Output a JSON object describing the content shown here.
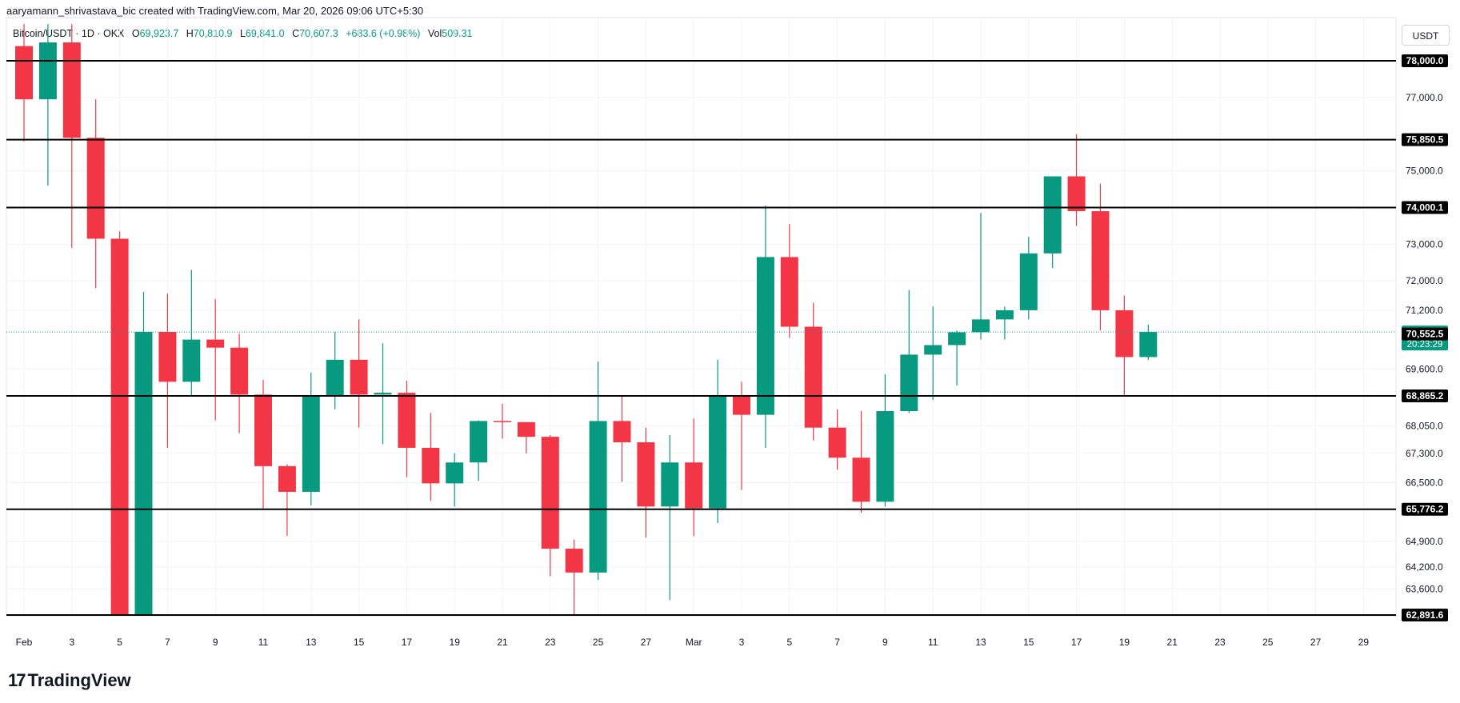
{
  "header": {
    "caption": "aaryamann_shrivastava_bic created with TradingView.com, Mar 20, 2026 09:06 UTC+5:30"
  },
  "symbol": {
    "name": "Bitcoin/USDT · 1D · OKX",
    "o_label": "O",
    "o": "69,923.7",
    "h_label": "H",
    "h": "70,810.9",
    "l_label": "L",
    "l": "69,841.0",
    "c_label": "C",
    "c": "70,607.3",
    "change": "+683.6 (+0.98%)",
    "vol_label": "Vol",
    "vol": "509.31"
  },
  "currency": "USDT",
  "brand": {
    "logo": "17",
    "name": "TradingView"
  },
  "colors": {
    "up": "#089981",
    "down": "#f23645",
    "grid": "#f0f3fa",
    "line": "#000000"
  },
  "chart_data": {
    "type": "candlestick",
    "ylim": [
      62700,
      79000
    ],
    "y_ticks": [
      {
        "v": 63600,
        "label": "63,600.0"
      },
      {
        "v": 64200,
        "label": "64,200.0"
      },
      {
        "v": 64900,
        "label": "64,900.0"
      },
      {
        "v": 66500,
        "label": "66,500.0"
      },
      {
        "v": 67300,
        "label": "67,300.0"
      },
      {
        "v": 68050,
        "label": "68,050.0"
      },
      {
        "v": 69600,
        "label": "69,600.0"
      },
      {
        "v": 71200,
        "label": "71,200.0"
      },
      {
        "v": 72000,
        "label": "72,000.0"
      },
      {
        "v": 73000,
        "label": "73,000.0"
      },
      {
        "v": 75000,
        "label": "75,000.0"
      },
      {
        "v": 77000,
        "label": "77,000.0"
      }
    ],
    "x_ticks": [
      {
        "i": 0,
        "label": "Feb"
      },
      {
        "i": 2,
        "label": "3"
      },
      {
        "i": 4,
        "label": "5"
      },
      {
        "i": 6,
        "label": "7"
      },
      {
        "i": 8,
        "label": "9"
      },
      {
        "i": 10,
        "label": "11"
      },
      {
        "i": 12,
        "label": "13"
      },
      {
        "i": 14,
        "label": "15"
      },
      {
        "i": 16,
        "label": "17"
      },
      {
        "i": 18,
        "label": "19"
      },
      {
        "i": 20,
        "label": "21"
      },
      {
        "i": 22,
        "label": "23"
      },
      {
        "i": 24,
        "label": "25"
      },
      {
        "i": 26,
        "label": "27"
      },
      {
        "i": 28,
        "label": "Mar"
      },
      {
        "i": 30,
        "label": "3"
      },
      {
        "i": 32,
        "label": "5"
      },
      {
        "i": 34,
        "label": "7"
      },
      {
        "i": 36,
        "label": "9"
      },
      {
        "i": 38,
        "label": "11"
      },
      {
        "i": 40,
        "label": "13"
      },
      {
        "i": 42,
        "label": "15"
      },
      {
        "i": 44,
        "label": "17"
      },
      {
        "i": 46,
        "label": "19"
      },
      {
        "i": 48,
        "label": "21"
      },
      {
        "i": 50,
        "label": "23"
      },
      {
        "i": 52,
        "label": "25"
      },
      {
        "i": 54,
        "label": "27"
      },
      {
        "i": 56,
        "label": "29"
      }
    ],
    "levels": [
      {
        "v": 78000.0,
        "label": "78,000.0"
      },
      {
        "v": 75850.5,
        "label": "75,850.5"
      },
      {
        "v": 74000.1,
        "label": "74,000.1"
      },
      {
        "v": 68865.2,
        "label": "68,865.2"
      },
      {
        "v": 65776.2,
        "label": "65,776.2"
      },
      {
        "v": 62891.6,
        "label": "62,891.6"
      }
    ],
    "current": {
      "v": 70607.3,
      "label": "70,607.3",
      "countdown": "20:23:29"
    },
    "marker": {
      "v": 70552.5,
      "label": "70,552.5"
    },
    "candles": [
      {
        "o": 78400,
        "h": 79000,
        "l": 75800,
        "c": 76950
      },
      {
        "o": 76950,
        "h": 79000,
        "l": 74600,
        "c": 78500
      },
      {
        "o": 78500,
        "h": 79000,
        "l": 72900,
        "c": 75900
      },
      {
        "o": 75900,
        "h": 76950,
        "l": 71800,
        "c": 73150
      },
      {
        "o": 73150,
        "h": 73350,
        "l": 62700,
        "c": 62700
      },
      {
        "o": 62700,
        "h": 71700,
        "l": 62700,
        "c": 70610
      },
      {
        "o": 70610,
        "h": 71650,
        "l": 67450,
        "c": 69250
      },
      {
        "o": 69250,
        "h": 72300,
        "l": 68850,
        "c": 70400
      },
      {
        "o": 70400,
        "h": 71500,
        "l": 68200,
        "c": 70180
      },
      {
        "o": 70180,
        "h": 70560,
        "l": 67850,
        "c": 68900
      },
      {
        "o": 68900,
        "h": 69300,
        "l": 65750,
        "c": 66950
      },
      {
        "o": 66950,
        "h": 67000,
        "l": 65050,
        "c": 66250
      },
      {
        "o": 66250,
        "h": 69500,
        "l": 65880,
        "c": 68850
      },
      {
        "o": 68850,
        "h": 70600,
        "l": 68500,
        "c": 69850
      },
      {
        "o": 69850,
        "h": 70950,
        "l": 68000,
        "c": 68900
      },
      {
        "o": 68900,
        "h": 70300,
        "l": 67550,
        "c": 68950
      },
      {
        "o": 68950,
        "h": 69280,
        "l": 66650,
        "c": 67450
      },
      {
        "o": 67450,
        "h": 68400,
        "l": 66000,
        "c": 66480
      },
      {
        "o": 66480,
        "h": 67300,
        "l": 65850,
        "c": 67050
      },
      {
        "o": 67050,
        "h": 68200,
        "l": 66550,
        "c": 68180
      },
      {
        "o": 68180,
        "h": 68650,
        "l": 67700,
        "c": 68150
      },
      {
        "o": 68150,
        "h": 68150,
        "l": 67300,
        "c": 67750
      },
      {
        "o": 67750,
        "h": 67800,
        "l": 63950,
        "c": 64700
      },
      {
        "o": 64700,
        "h": 64950,
        "l": 62700,
        "c": 64050
      },
      {
        "o": 64050,
        "h": 69800,
        "l": 63850,
        "c": 68180
      },
      {
        "o": 68180,
        "h": 68850,
        "l": 66520,
        "c": 67600
      },
      {
        "o": 67600,
        "h": 68000,
        "l": 65000,
        "c": 65850
      },
      {
        "o": 65850,
        "h": 67800,
        "l": 63300,
        "c": 67050
      },
      {
        "o": 67050,
        "h": 68250,
        "l": 65050,
        "c": 65800
      },
      {
        "o": 65800,
        "h": 69850,
        "l": 65400,
        "c": 68880
      },
      {
        "o": 68880,
        "h": 69250,
        "l": 66300,
        "c": 68350
      },
      {
        "o": 68350,
        "h": 74050,
        "l": 67450,
        "c": 72650
      },
      {
        "o": 72650,
        "h": 73550,
        "l": 70450,
        "c": 70750
      },
      {
        "o": 70750,
        "h": 71400,
        "l": 67650,
        "c": 68000
      },
      {
        "o": 68000,
        "h": 68500,
        "l": 66850,
        "c": 67180
      },
      {
        "o": 67180,
        "h": 68450,
        "l": 65680,
        "c": 65980
      },
      {
        "o": 65980,
        "h": 69450,
        "l": 65850,
        "c": 68450
      },
      {
        "o": 68450,
        "h": 71750,
        "l": 68400,
        "c": 69990
      },
      {
        "o": 69990,
        "h": 71300,
        "l": 68750,
        "c": 70250
      },
      {
        "o": 70250,
        "h": 70650,
        "l": 69150,
        "c": 70600
      },
      {
        "o": 70600,
        "h": 73850,
        "l": 70400,
        "c": 70950
      },
      {
        "o": 70950,
        "h": 71300,
        "l": 70400,
        "c": 71200
      },
      {
        "o": 71200,
        "h": 73200,
        "l": 70950,
        "c": 72750
      },
      {
        "o": 72750,
        "h": 74850,
        "l": 72350,
        "c": 74850
      },
      {
        "o": 74850,
        "h": 76000,
        "l": 73500,
        "c": 73900
      },
      {
        "o": 73900,
        "h": 74650,
        "l": 70650,
        "c": 71200
      },
      {
        "o": 71200,
        "h": 71600,
        "l": 68850,
        "c": 69923.7
      },
      {
        "o": 69923.7,
        "h": 70810.9,
        "l": 69841.0,
        "c": 70607.3
      }
    ]
  }
}
